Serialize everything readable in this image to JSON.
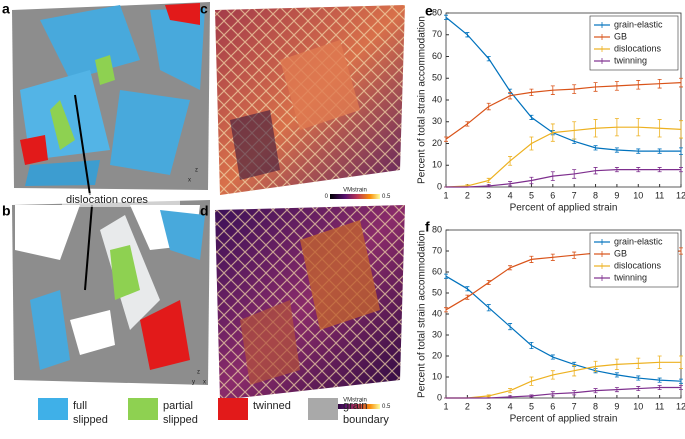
{
  "panels": {
    "a": "a",
    "b": "b",
    "c": "c",
    "d": "d",
    "e": "e",
    "f": "f"
  },
  "annotation": "dislocation cores",
  "triad_a": [
    "z",
    "x"
  ],
  "triad_b": [
    "z",
    "x",
    "y"
  ],
  "colorbar_c": {
    "title": "VMstrain",
    "min": 0,
    "max": 0.5
  },
  "colorbar_d": {
    "title": "VMstrain",
    "min": 0,
    "max": 0.5
  },
  "legend": [
    {
      "lines": [
        "full",
        "slipped"
      ],
      "color": "#3fb0e8"
    },
    {
      "lines": [
        "partial",
        "slipped"
      ],
      "color": "#8ed151"
    },
    {
      "lines": [
        "twinned"
      ],
      "color": "#e21a1a"
    },
    {
      "lines": [
        "grain",
        "boundary"
      ],
      "color": "#a9a9a9"
    }
  ],
  "chart_data": [
    {
      "type": "line",
      "xlabel": "Percent of applied strain",
      "ylabel": "Percent of total strain accommodation",
      "legend": "upper right",
      "grid": false,
      "x": [
        1,
        2,
        3,
        4,
        5,
        6,
        7,
        8,
        9,
        10,
        11,
        12
      ],
      "xlim": [
        1,
        12
      ],
      "xticks": [
        1,
        2,
        3,
        4,
        5,
        6,
        7,
        8,
        9,
        10,
        11,
        12
      ],
      "ylim": [
        0,
        80
      ],
      "yticks": [
        0,
        10,
        20,
        30,
        40,
        50,
        60,
        70,
        80
      ],
      "series": [
        {
          "name": "grain-elastic",
          "color": "#0072bd",
          "values": [
            78,
            70,
            59,
            44,
            32,
            25,
            21,
            18,
            17,
            16.5,
            16.5,
            16.5
          ],
          "errors": [
            1,
            1,
            1,
            1,
            1,
            1,
            1,
            1,
            1,
            1,
            1,
            1.5
          ]
        },
        {
          "name": "GB",
          "color": "#d95319",
          "values": [
            22,
            29,
            37,
            42,
            43.5,
            44.5,
            45,
            46,
            46.5,
            47,
            47.5,
            48
          ],
          "errors": [
            1,
            1,
            1.5,
            1.5,
            1.5,
            2,
            2,
            2,
            2,
            2,
            2,
            2
          ]
        },
        {
          "name": "dislocations",
          "color": "#edb120",
          "values": [
            0,
            0.5,
            3,
            12,
            20,
            25,
            26,
            27,
            27.5,
            27.5,
            27,
            26.5
          ],
          "errors": [
            0,
            0.5,
            1,
            2,
            3,
            4,
            4,
            4,
            4,
            4,
            4,
            4
          ]
        },
        {
          "name": "twinning",
          "color": "#7e2f8e",
          "values": [
            0,
            0,
            0.5,
            1.5,
            3,
            5,
            6,
            7.5,
            8,
            8,
            8,
            8
          ],
          "errors": [
            0,
            0,
            0.5,
            1,
            1.5,
            2,
            2,
            1.5,
            1,
            1,
            1,
            1
          ]
        }
      ]
    },
    {
      "type": "line",
      "xlabel": "Percent of applied strain",
      "ylabel": "Percent of total strain accommodation",
      "legend": "upper right",
      "grid": false,
      "x": [
        1,
        2,
        3,
        4,
        5,
        6,
        7,
        8,
        9,
        10,
        11,
        12
      ],
      "xlim": [
        1,
        12
      ],
      "xticks": [
        1,
        2,
        3,
        4,
        5,
        6,
        7,
        8,
        9,
        10,
        11,
        12
      ],
      "ylim": [
        0,
        80
      ],
      "yticks": [
        0,
        10,
        20,
        30,
        40,
        50,
        60,
        70,
        80
      ],
      "series": [
        {
          "name": "grain-elastic",
          "color": "#0072bd",
          "values": [
            58,
            52,
            43,
            34,
            25,
            19.5,
            16,
            13,
            11,
            9.5,
            8.5,
            8
          ],
          "errors": [
            1,
            1,
            1.5,
            1.5,
            1.5,
            1,
            1,
            1,
            1,
            1,
            1,
            1
          ]
        },
        {
          "name": "GB",
          "color": "#d95319",
          "values": [
            42,
            48,
            55,
            62,
            66,
            67,
            68,
            69,
            69.5,
            69.5,
            69.5,
            70
          ],
          "errors": [
            1,
            1,
            1,
            1,
            1.5,
            1.5,
            1.5,
            1.5,
            1.5,
            1.5,
            1.5,
            1.5
          ]
        },
        {
          "name": "dislocations",
          "color": "#edb120",
          "values": [
            0,
            0,
            1,
            3.5,
            8,
            11,
            13,
            15,
            16,
            16.5,
            17,
            17
          ],
          "errors": [
            0,
            0,
            0.5,
            1,
            2,
            2,
            2.5,
            2.5,
            2.5,
            2.5,
            3,
            3
          ]
        },
        {
          "name": "twinning",
          "color": "#7e2f8e",
          "values": [
            0,
            0,
            0,
            0.5,
            1,
            2,
            2.5,
            3.5,
            4,
            4.5,
            5,
            5
          ],
          "errors": [
            0,
            0,
            0,
            0.5,
            0.5,
            1,
            1,
            1,
            1,
            1,
            1,
            1
          ]
        }
      ]
    }
  ]
}
